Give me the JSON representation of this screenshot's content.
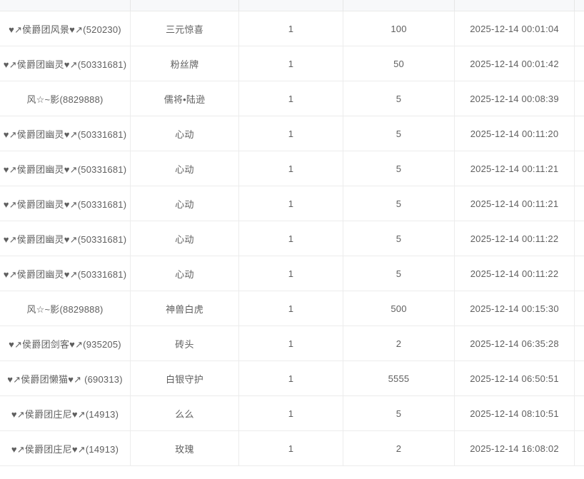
{
  "ui": {
    "colors": {
      "header_bg": "#f7f8fa",
      "row_bg": "#ffffff",
      "grid_border": "#ececec",
      "text": "#5f5f5f"
    }
  },
  "table": {
    "column_keys": [
      "user",
      "item",
      "quantity",
      "value",
      "time"
    ],
    "rows": [
      {
        "user": "♥↗侯爵团风景♥↗(520230)",
        "item": "三元惊喜",
        "quantity": "1",
        "value": "100",
        "time": "2025-12-14 00:01:04"
      },
      {
        "user": "♥↗侯爵团幽灵♥↗(50331681)",
        "item": "粉丝牌",
        "quantity": "1",
        "value": "50",
        "time": "2025-12-14 00:01:42"
      },
      {
        "user": "风☆~影(8829888)",
        "item": "儒将•陆逊",
        "quantity": "1",
        "value": "5",
        "time": "2025-12-14 00:08:39"
      },
      {
        "user": "♥↗侯爵团幽灵♥↗(50331681)",
        "item": "心动",
        "quantity": "1",
        "value": "5",
        "time": "2025-12-14 00:11:20"
      },
      {
        "user": "♥↗侯爵团幽灵♥↗(50331681)",
        "item": "心动",
        "quantity": "1",
        "value": "5",
        "time": "2025-12-14 00:11:21"
      },
      {
        "user": "♥↗侯爵团幽灵♥↗(50331681)",
        "item": "心动",
        "quantity": "1",
        "value": "5",
        "time": "2025-12-14 00:11:21"
      },
      {
        "user": "♥↗侯爵团幽灵♥↗(50331681)",
        "item": "心动",
        "quantity": "1",
        "value": "5",
        "time": "2025-12-14 00:11:22"
      },
      {
        "user": "♥↗侯爵团幽灵♥↗(50331681)",
        "item": "心动",
        "quantity": "1",
        "value": "5",
        "time": "2025-12-14 00:11:22"
      },
      {
        "user": "风☆~影(8829888)",
        "item": "神兽白虎",
        "quantity": "1",
        "value": "500",
        "time": "2025-12-14 00:15:30"
      },
      {
        "user": "♥↗侯爵团剑客♥↗(935205)",
        "item": "砖头",
        "quantity": "1",
        "value": "2",
        "time": "2025-12-14 06:35:28"
      },
      {
        "user": "♥↗侯爵团懒猫♥↗ (690313)",
        "item": "白银守护",
        "quantity": "1",
        "value": "5555",
        "time": "2025-12-14 06:50:51"
      },
      {
        "user": "♥↗侯爵团庄尼♥↗(14913)",
        "item": "么么",
        "quantity": "1",
        "value": "5",
        "time": "2025-12-14 08:10:51"
      },
      {
        "user": "♥↗侯爵团庄尼♥↗(14913)",
        "item": "玫瑰",
        "quantity": "1",
        "value": "2",
        "time": "2025-12-14 16:08:02"
      }
    ]
  }
}
